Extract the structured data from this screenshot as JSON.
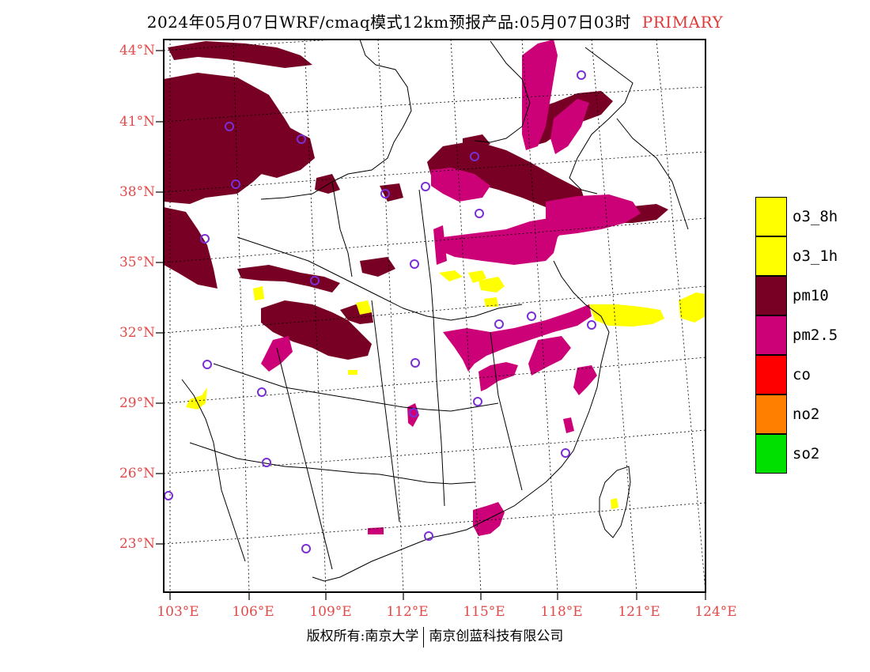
{
  "title": {
    "main": "2024年05月07日WRF/cmaq模式12km预报产品:05月07日03时",
    "tag": "PRIMARY"
  },
  "lat_labels": [
    "44°N",
    "41°N",
    "38°N",
    "35°N",
    "32°N",
    "29°N",
    "26°N",
    "23°N"
  ],
  "lon_labels": [
    "103°E",
    "106°E",
    "109°E",
    "112°E",
    "115°E",
    "118°E",
    "121°E",
    "124°E"
  ],
  "legend": [
    {
      "label": "o3_8h",
      "color": "#ffff00"
    },
    {
      "label": "o3_1h",
      "color": "#ffff00"
    },
    {
      "label": "pm10",
      "color": "#780024"
    },
    {
      "label": "pm2.5",
      "color": "#cc0077"
    },
    {
      "label": "co",
      "color": "#ff0000"
    },
    {
      "label": "no2",
      "color": "#ff7f00"
    },
    {
      "label": "so2",
      "color": "#00e000"
    }
  ],
  "footer": {
    "left": "版权所有:南京大学",
    "right": "南京创蓝科技有限公司"
  },
  "colors": {
    "pm10": "#780024",
    "pm25": "#cc0077",
    "o3": "#ffff00",
    "station": "#7a2fd6",
    "axis_label": "#e24a4a"
  }
}
